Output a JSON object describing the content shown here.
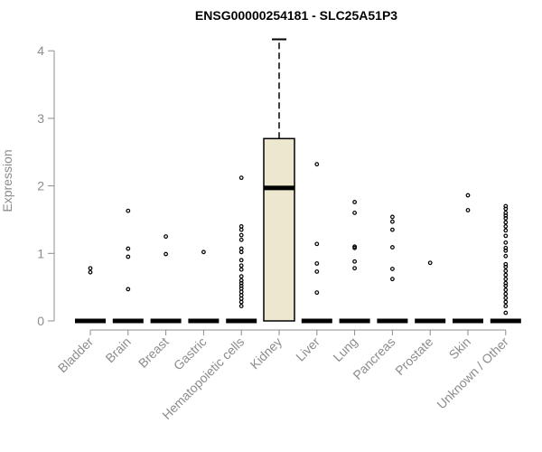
{
  "chart_data": {
    "type": "boxplot",
    "title": "ENSG00000254181 - SLC25A51P3",
    "xlabel": "",
    "ylabel": "Expression",
    "ylim": [
      0,
      4.2
    ],
    "yticks": [
      0,
      1,
      2,
      3,
      4
    ],
    "box_fill": "#ede7cf",
    "categories": [
      "Bladder",
      "Brain",
      "Breast",
      "Gastric",
      "Hematopoietic cells",
      "Kidney",
      "Liver",
      "Lung",
      "Pancreas",
      "Prostate",
      "Skin",
      "Unknown / Other"
    ],
    "boxes": [
      {
        "category": "Bladder",
        "q1": 0,
        "median": 0,
        "q3": 0,
        "whisker_low": 0,
        "whisker_high": 0,
        "outliers": [
          0.72,
          0.78
        ]
      },
      {
        "category": "Brain",
        "q1": 0,
        "median": 0,
        "q3": 0,
        "whisker_low": 0,
        "whisker_high": 0,
        "outliers": [
          0.47,
          0.95,
          1.07,
          1.63
        ]
      },
      {
        "category": "Breast",
        "q1": 0,
        "median": 0,
        "q3": 0,
        "whisker_low": 0,
        "whisker_high": 0,
        "outliers": [
          0.99,
          1.25
        ]
      },
      {
        "category": "Gastric",
        "q1": 0,
        "median": 0,
        "q3": 0,
        "whisker_low": 0,
        "whisker_high": 0,
        "outliers": [
          1.02
        ]
      },
      {
        "category": "Hematopoietic cells",
        "q1": 0,
        "median": 0,
        "q3": 0,
        "whisker_low": 0,
        "whisker_high": 0,
        "outliers": [
          0.22,
          0.28,
          0.33,
          0.38,
          0.43,
          0.48,
          0.52,
          0.56,
          0.6,
          0.66,
          0.76,
          0.82,
          0.9,
          1.02,
          1.07,
          1.2,
          1.27,
          1.35,
          1.4,
          2.12
        ]
      },
      {
        "category": "Kidney",
        "q1": 0,
        "median": 1.97,
        "q3": 2.7,
        "whisker_low": 0,
        "whisker_high": 4.17,
        "outliers": []
      },
      {
        "category": "Liver",
        "q1": 0,
        "median": 0,
        "q3": 0,
        "whisker_low": 0,
        "whisker_high": 0,
        "outliers": [
          0.42,
          0.73,
          0.85,
          1.14,
          2.32
        ]
      },
      {
        "category": "Lung",
        "q1": 0,
        "median": 0,
        "q3": 0,
        "whisker_low": 0,
        "whisker_high": 0,
        "outliers": [
          0.78,
          0.88,
          1.08,
          1.1,
          1.6,
          1.76
        ]
      },
      {
        "category": "Pancreas",
        "q1": 0,
        "median": 0,
        "q3": 0,
        "whisker_low": 0,
        "whisker_high": 0,
        "outliers": [
          0.62,
          0.77,
          1.09,
          1.35,
          1.47,
          1.54
        ]
      },
      {
        "category": "Prostate",
        "q1": 0,
        "median": 0,
        "q3": 0,
        "whisker_low": 0,
        "whisker_high": 0,
        "outliers": [
          0.86
        ]
      },
      {
        "category": "Skin",
        "q1": 0,
        "median": 0,
        "q3": 0,
        "whisker_low": 0,
        "whisker_high": 0,
        "outliers": [
          1.64,
          1.86
        ]
      },
      {
        "category": "Unknown / Other",
        "q1": 0,
        "median": 0,
        "q3": 0,
        "whisker_low": 0,
        "whisker_high": 0,
        "outliers": [
          0.12,
          0.22,
          0.28,
          0.34,
          0.4,
          0.46,
          0.52,
          0.56,
          0.62,
          0.68,
          0.74,
          0.8,
          0.84,
          0.96,
          1.04,
          1.08,
          1.16,
          1.26,
          1.34,
          1.4,
          1.46,
          1.52,
          1.56,
          1.6,
          1.66,
          1.7
        ]
      }
    ]
  }
}
